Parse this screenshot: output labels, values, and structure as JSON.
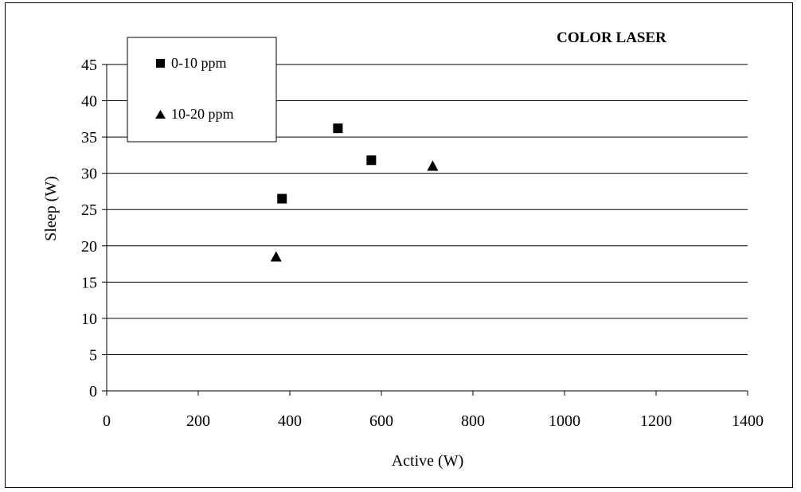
{
  "chart_data": {
    "type": "scatter",
    "title": "COLOR LASER",
    "xlabel": "Active (W)",
    "ylabel": "Sleep (W)",
    "xlim": [
      0,
      1400
    ],
    "ylim": [
      0,
      45
    ],
    "xticks": [
      "0",
      "200",
      "400",
      "600",
      "800",
      "1000",
      "1200",
      "1400"
    ],
    "yticks": [
      "0",
      "5",
      "10",
      "15",
      "20",
      "25",
      "30",
      "35",
      "40",
      "45"
    ],
    "grid": "horizontal",
    "legend_position": "top-left",
    "series": [
      {
        "name": "0-10 ppm",
        "marker": "square",
        "color": "#000000",
        "points": [
          [
            383,
            26.5
          ],
          [
            505,
            36.2
          ],
          [
            578,
            31.8
          ]
        ]
      },
      {
        "name": "10-20 ppm",
        "marker": "triangle",
        "color": "#000000",
        "points": [
          [
            370,
            18.5
          ],
          [
            712,
            31.0
          ]
        ]
      }
    ]
  }
}
